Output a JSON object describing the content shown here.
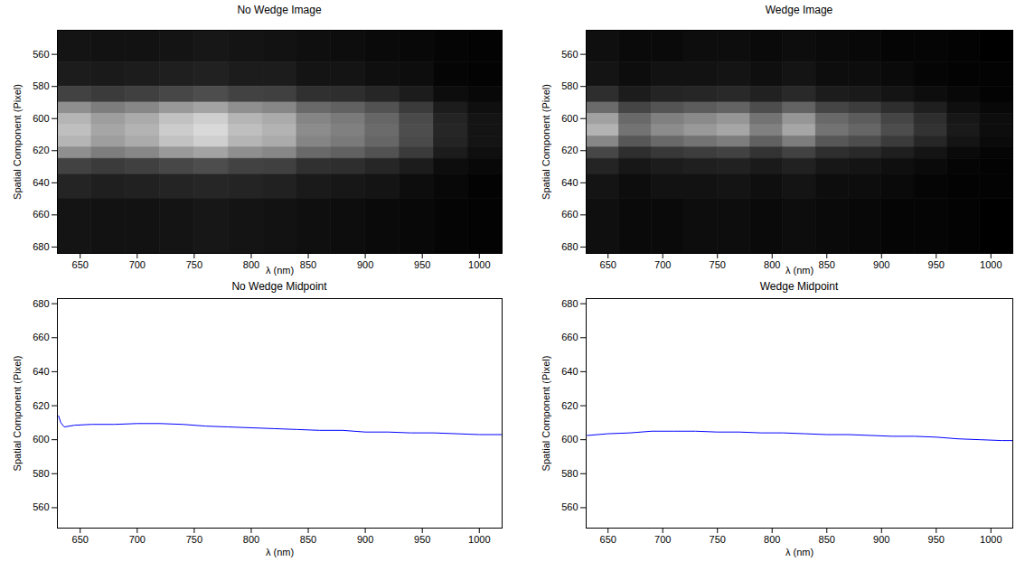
{
  "chart_data": [
    {
      "type": "heatmap",
      "title": "No Wedge Image",
      "x_label": "λ (nm)",
      "y_label": "Spatial Component (Pixel)",
      "xlim": [
        630,
        1020
      ],
      "xticks": [
        650,
        700,
        750,
        800,
        850,
        900,
        950,
        1000
      ],
      "ylim": [
        684,
        545
      ],
      "yticks": [
        560,
        580,
        600,
        620,
        640,
        660,
        680
      ],
      "x_edges": [
        630,
        660,
        690,
        720,
        750,
        780,
        810,
        840,
        870,
        900,
        930,
        960,
        990,
        1020
      ],
      "y_edges": [
        545,
        565,
        580,
        590,
        597,
        604,
        611,
        618,
        625,
        635,
        650,
        684
      ],
      "zlim": [
        0,
        1
      ],
      "cells": [
        [
          0.08,
          0.07,
          0.07,
          0.08,
          0.09,
          0.08,
          0.07,
          0.06,
          0.05,
          0.04,
          0.03,
          0.02,
          0.01
        ],
        [
          0.11,
          0.1,
          0.11,
          0.12,
          0.13,
          0.11,
          0.11,
          0.08,
          0.08,
          0.06,
          0.05,
          0.02,
          0.01
        ],
        [
          0.26,
          0.23,
          0.25,
          0.28,
          0.3,
          0.26,
          0.25,
          0.19,
          0.18,
          0.15,
          0.11,
          0.05,
          0.03
        ],
        [
          0.56,
          0.49,
          0.53,
          0.6,
          0.64,
          0.56,
          0.53,
          0.41,
          0.38,
          0.32,
          0.23,
          0.11,
          0.06
        ],
        [
          0.71,
          0.62,
          0.67,
          0.76,
          0.81,
          0.71,
          0.67,
          0.52,
          0.48,
          0.4,
          0.29,
          0.14,
          0.08
        ],
        [
          0.75,
          0.65,
          0.7,
          0.8,
          0.85,
          0.75,
          0.7,
          0.55,
          0.5,
          0.42,
          0.3,
          0.15,
          0.08
        ],
        [
          0.71,
          0.62,
          0.67,
          0.76,
          0.81,
          0.71,
          0.67,
          0.52,
          0.48,
          0.4,
          0.29,
          0.14,
          0.08
        ],
        [
          0.56,
          0.49,
          0.53,
          0.6,
          0.64,
          0.56,
          0.53,
          0.41,
          0.38,
          0.32,
          0.23,
          0.11,
          0.06
        ],
        [
          0.26,
          0.23,
          0.25,
          0.28,
          0.3,
          0.26,
          0.25,
          0.19,
          0.18,
          0.15,
          0.11,
          0.05,
          0.03
        ],
        [
          0.14,
          0.12,
          0.13,
          0.14,
          0.15,
          0.14,
          0.13,
          0.1,
          0.09,
          0.08,
          0.05,
          0.03,
          0.01
        ],
        [
          0.08,
          0.07,
          0.07,
          0.08,
          0.09,
          0.08,
          0.07,
          0.06,
          0.05,
          0.04,
          0.03,
          0.02,
          0.01
        ]
      ]
    },
    {
      "type": "heatmap",
      "title": "Wedge Image",
      "x_label": "λ (nm)",
      "y_label": "Spatial Component (Pixel)",
      "xlim": [
        630,
        1020
      ],
      "xticks": [
        650,
        700,
        750,
        800,
        850,
        900,
        950,
        1000
      ],
      "ylim": [
        684,
        545
      ],
      "yticks": [
        560,
        580,
        600,
        620,
        640,
        660,
        680
      ],
      "x_edges": [
        630,
        660,
        690,
        720,
        750,
        780,
        810,
        840,
        870,
        900,
        930,
        960,
        990,
        1020
      ],
      "y_edges": [
        545,
        565,
        580,
        590,
        597,
        604,
        611,
        618,
        625,
        635,
        650,
        684
      ],
      "zlim": [
        0,
        1
      ],
      "cells": [
        [
          0.06,
          0.04,
          0.04,
          0.05,
          0.05,
          0.04,
          0.05,
          0.04,
          0.03,
          0.02,
          0.02,
          0.01,
          0
        ],
        [
          0.08,
          0.05,
          0.07,
          0.07,
          0.08,
          0.06,
          0.08,
          0.05,
          0.05,
          0.04,
          0.02,
          0.01,
          0.01
        ],
        [
          0.18,
          0.11,
          0.14,
          0.15,
          0.16,
          0.13,
          0.16,
          0.11,
          0.1,
          0.08,
          0.05,
          0.03,
          0.01
        ],
        [
          0.42,
          0.27,
          0.33,
          0.36,
          0.39,
          0.3,
          0.39,
          0.27,
          0.24,
          0.18,
          0.12,
          0.06,
          0.03
        ],
        [
          0.63,
          0.41,
          0.5,
          0.54,
          0.59,
          0.45,
          0.59,
          0.41,
          0.36,
          0.27,
          0.18,
          0.09,
          0.05
        ],
        [
          0.7,
          0.45,
          0.55,
          0.6,
          0.65,
          0.5,
          0.65,
          0.45,
          0.4,
          0.3,
          0.2,
          0.1,
          0.05
        ],
        [
          0.53,
          0.34,
          0.41,
          0.45,
          0.49,
          0.38,
          0.49,
          0.34,
          0.3,
          0.23,
          0.15,
          0.08,
          0.04
        ],
        [
          0.28,
          0.18,
          0.22,
          0.24,
          0.26,
          0.2,
          0.26,
          0.18,
          0.16,
          0.12,
          0.08,
          0.04,
          0.02
        ],
        [
          0.14,
          0.09,
          0.11,
          0.12,
          0.13,
          0.1,
          0.13,
          0.09,
          0.08,
          0.06,
          0.04,
          0.02,
          0.01
        ],
        [
          0.08,
          0.05,
          0.07,
          0.07,
          0.08,
          0.06,
          0.08,
          0.05,
          0.05,
          0.04,
          0.02,
          0.01,
          0.01
        ],
        [
          0.06,
          0.04,
          0.04,
          0.05,
          0.05,
          0.04,
          0.05,
          0.04,
          0.03,
          0.02,
          0.02,
          0.01,
          0
        ]
      ]
    },
    {
      "type": "line",
      "title": "No Wedge Midpoint",
      "x_label": "λ (nm)",
      "y_label": "Spatial Component (Pixel)",
      "xlim": [
        630,
        1020
      ],
      "xticks": [
        650,
        700,
        750,
        800,
        850,
        900,
        950,
        1000
      ],
      "ylim": [
        548,
        683
      ],
      "yticks": [
        560,
        580,
        600,
        620,
        640,
        660,
        680
      ],
      "color": "#0000ff",
      "x": [
        631,
        633,
        636,
        645,
        660,
        680,
        700,
        720,
        740,
        760,
        780,
        800,
        820,
        840,
        860,
        880,
        900,
        920,
        940,
        960,
        980,
        1000,
        1020
      ],
      "values": [
        614,
        610,
        607.5,
        608.5,
        609,
        609,
        609.5,
        609.5,
        609,
        608,
        607.5,
        607,
        606.5,
        606,
        605.5,
        605.5,
        604.5,
        604.5,
        604,
        604,
        603.5,
        603,
        603
      ]
    },
    {
      "type": "line",
      "title": "Wedge Midpoint",
      "x_label": "λ (nm)",
      "y_label": "Spatial Component (Pixel)",
      "xlim": [
        630,
        1020
      ],
      "xticks": [
        650,
        700,
        750,
        800,
        850,
        900,
        950,
        1000
      ],
      "ylim": [
        548,
        683
      ],
      "yticks": [
        560,
        580,
        600,
        620,
        640,
        660,
        680
      ],
      "color": "#0000ff",
      "x": [
        631,
        650,
        670,
        690,
        710,
        730,
        750,
        770,
        790,
        810,
        830,
        850,
        870,
        890,
        910,
        930,
        950,
        970,
        990,
        1010,
        1020
      ],
      "values": [
        602.5,
        603.5,
        604,
        605,
        605,
        605,
        604.5,
        604.5,
        604,
        604,
        603.5,
        603,
        603,
        602.5,
        602,
        602,
        601.5,
        600.5,
        600,
        599.5,
        599.5
      ]
    }
  ]
}
